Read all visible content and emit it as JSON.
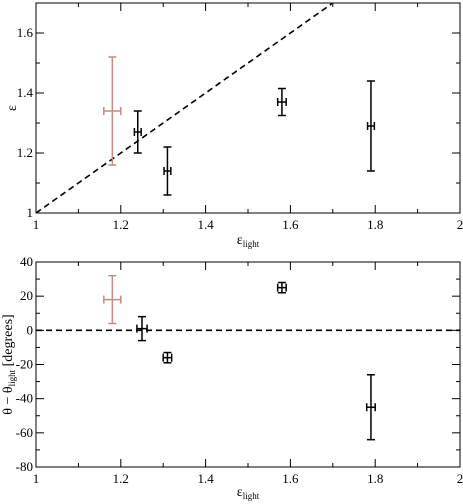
{
  "chart_data": [
    {
      "type": "scatter",
      "title": "",
      "xlabel": "ε",
      "xlabel_sub": "light",
      "ylabel": "ε",
      "ylabel_sub": "",
      "xlim": [
        1,
        2
      ],
      "ylim": [
        1,
        1.7
      ],
      "xticks": [
        1,
        1.2,
        1.4,
        1.6,
        1.8,
        2
      ],
      "xtick_labels": [
        "1",
        "1.2",
        "1.4",
        "1.6",
        "1.8",
        "2"
      ],
      "yticks": [
        1,
        1.2,
        1.4,
        1.6
      ],
      "ytick_labels": [
        "1",
        "1.2",
        "1.4",
        "1.6"
      ],
      "grid": false,
      "reference_line": {
        "kind": "y_equals_x",
        "style": "dashed",
        "color": "#000000"
      },
      "series": [
        {
          "color": "#c48a84",
          "points": [
            {
              "x": 1.18,
              "y": 1.34,
              "xerr": 0.02,
              "yerr": 0.18
            }
          ]
        },
        {
          "color": "#000000",
          "points": [
            {
              "x": 1.24,
              "y": 1.27,
              "xerr": 0.008,
              "yerr": 0.07
            },
            {
              "x": 1.31,
              "y": 1.14,
              "xerr": 0.008,
              "yerr": 0.08
            },
            {
              "x": 1.58,
              "y": 1.37,
              "xerr": 0.01,
              "yerr": 0.045
            },
            {
              "x": 1.79,
              "y": 1.29,
              "xerr": 0.008,
              "yerr": 0.15
            }
          ]
        }
      ]
    },
    {
      "type": "scatter",
      "title": "",
      "xlabel": "ε",
      "xlabel_sub": "light",
      "ylabel": "θ − θ",
      "ylabel_sub": "light",
      "ylabel_suffix": " [degrees]",
      "xlim": [
        1,
        2
      ],
      "ylim": [
        -80,
        40
      ],
      "xticks": [
        1,
        1.2,
        1.4,
        1.6,
        1.8,
        2
      ],
      "xtick_labels": [
        "1",
        "1.2",
        "1.4",
        "1.6",
        "1.8",
        "2"
      ],
      "yticks": [
        -80,
        -60,
        -40,
        -20,
        0,
        20,
        40
      ],
      "ytick_labels": [
        "-80",
        "-60",
        "-40",
        "-20",
        "0",
        "20",
        "40"
      ],
      "grid": false,
      "reference_line": {
        "kind": "y_equals_0",
        "style": "dashed",
        "color": "#000000"
      },
      "series": [
        {
          "color": "#c48a84",
          "points": [
            {
              "x": 1.18,
              "y": 18,
              "xerr": 0.02,
              "yerr": 14
            }
          ]
        },
        {
          "color": "#000000",
          "points": [
            {
              "x": 1.25,
              "y": 1,
              "xerr": 0.012,
              "yerr": 7
            },
            {
              "x": 1.31,
              "y": -16,
              "xerr": 0.01,
              "yerr": 3
            },
            {
              "x": 1.58,
              "y": 25,
              "xerr": 0.01,
              "yerr": 3
            },
            {
              "x": 1.79,
              "y": -45,
              "xerr": 0.01,
              "yerr": 19
            }
          ]
        }
      ]
    }
  ]
}
